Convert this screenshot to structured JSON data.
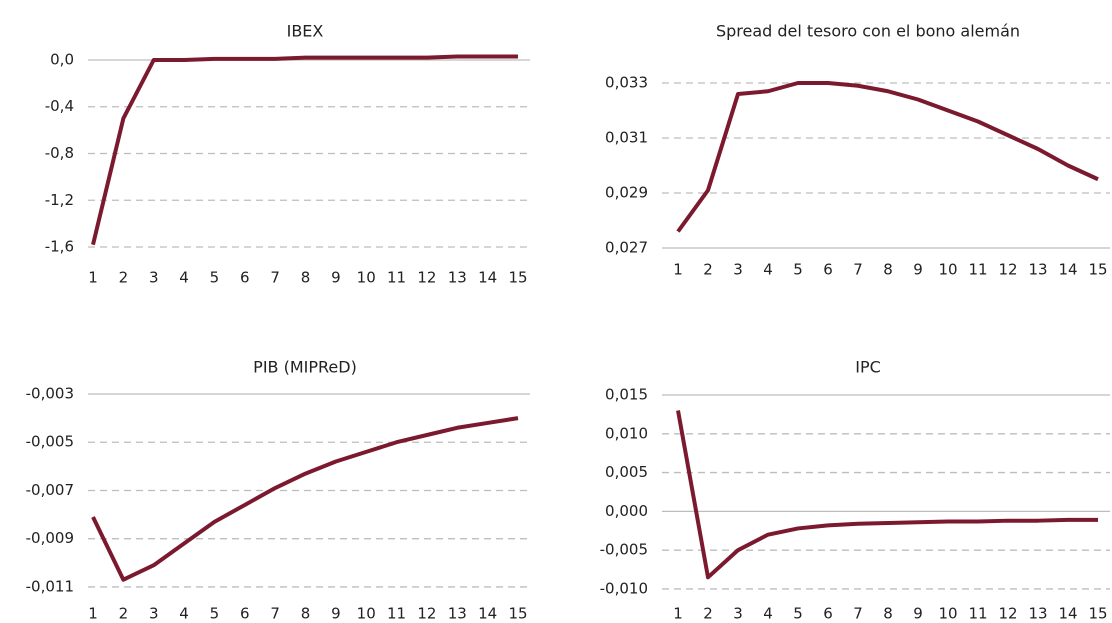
{
  "chart_data": [
    {
      "type": "line",
      "title": "IBEX",
      "categories": [
        "1",
        "2",
        "3",
        "4",
        "5",
        "6",
        "7",
        "8",
        "9",
        "10",
        "11",
        "12",
        "13",
        "14",
        "15"
      ],
      "values": [
        -1.58,
        -0.5,
        0.0,
        0.0,
        0.01,
        0.01,
        0.01,
        0.02,
        0.02,
        0.02,
        0.02,
        0.02,
        0.03,
        0.03,
        0.03
      ],
      "color": "#7b1a2e",
      "ylim": [
        -1.7,
        0.1
      ],
      "yticks": [
        {
          "value": 0.0,
          "label": "0,0"
        },
        {
          "value": -0.4,
          "label": "-0,4"
        },
        {
          "value": -0.8,
          "label": "-0,8"
        },
        {
          "value": -1.2,
          "label": "-1,2"
        },
        {
          "value": -1.6,
          "label": "-1,6"
        }
      ],
      "grid": true
    },
    {
      "type": "line",
      "title": "Spread del tesoro con el bono alemán",
      "categories": [
        "1",
        "2",
        "3",
        "4",
        "5",
        "6",
        "7",
        "8",
        "9",
        "10",
        "11",
        "12",
        "13",
        "14",
        "15"
      ],
      "values": [
        0.0276,
        0.0291,
        0.0326,
        0.0327,
        0.033,
        0.033,
        0.0329,
        0.0327,
        0.0324,
        0.032,
        0.0316,
        0.0311,
        0.0306,
        0.03,
        0.0295
      ],
      "color": "#7b1a2e",
      "ylim": [
        0.027,
        0.0335
      ],
      "yticks": [
        {
          "value": 0.033,
          "label": "0,033"
        },
        {
          "value": 0.031,
          "label": "0,031"
        },
        {
          "value": 0.029,
          "label": "0,029"
        },
        {
          "value": 0.027,
          "label": "0,027"
        }
      ],
      "grid": true
    },
    {
      "type": "line",
      "title": "PIB (MIPReD)",
      "categories": [
        "1",
        "2",
        "3",
        "4",
        "5",
        "6",
        "7",
        "8",
        "9",
        "10",
        "11",
        "12",
        "13",
        "14",
        "15"
      ],
      "values": [
        -0.0081,
        -0.0107,
        -0.0101,
        -0.0092,
        -0.0083,
        -0.0076,
        -0.0069,
        -0.0063,
        -0.0058,
        -0.0054,
        -0.005,
        -0.0047,
        -0.0044,
        -0.0042,
        -0.004
      ],
      "color": "#7b1a2e",
      "ylim": [
        -0.0115,
        -0.003
      ],
      "yticks": [
        {
          "value": -0.003,
          "label": "-0,003"
        },
        {
          "value": -0.005,
          "label": "-0,005"
        },
        {
          "value": -0.007,
          "label": "-0,007"
        },
        {
          "value": -0.009,
          "label": "-0,009"
        },
        {
          "value": -0.011,
          "label": "-0,011"
        }
      ],
      "grid": true
    },
    {
      "type": "line",
      "title": "IPC",
      "categories": [
        "1",
        "2",
        "3",
        "4",
        "5",
        "6",
        "7",
        "8",
        "9",
        "10",
        "11",
        "12",
        "13",
        "14",
        "15"
      ],
      "values": [
        0.013,
        -0.0085,
        -0.005,
        -0.003,
        -0.0022,
        -0.0018,
        -0.0016,
        -0.0015,
        -0.0014,
        -0.0013,
        -0.0013,
        -0.0012,
        -0.0012,
        -0.0011,
        -0.0011
      ],
      "color": "#7b1a2e",
      "ylim": [
        -0.0115,
        0.015
      ],
      "yticks": [
        {
          "value": 0.015,
          "label": "0,015"
        },
        {
          "value": 0.01,
          "label": "0,010"
        },
        {
          "value": 0.005,
          "label": "0,005"
        },
        {
          "value": 0.0,
          "label": "0,000"
        },
        {
          "value": -0.005,
          "label": "-0,005"
        },
        {
          "value": -0.01,
          "label": "-0,010"
        }
      ],
      "grid": true
    }
  ]
}
